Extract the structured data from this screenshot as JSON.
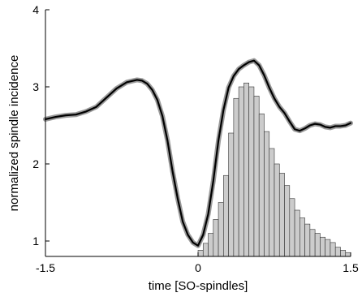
{
  "chart_data": {
    "type": "line",
    "title": "",
    "xlabel": "time [SO-spindles]",
    "ylabel": "normalized spindle incidence",
    "xlim": [
      -1.5,
      1.5
    ],
    "ylim": [
      0.8,
      4
    ],
    "xticks": [
      -1.5,
      0,
      1.5
    ],
    "xtick_labels": [
      "-1.5",
      "0",
      "1.5"
    ],
    "yticks": [
      1,
      2,
      3,
      4
    ],
    "ytick_labels": [
      "1",
      "2",
      "3",
      "4"
    ],
    "grid": false,
    "curve": {
      "x": [
        -1.5,
        -1.4,
        -1.3,
        -1.2,
        -1.1,
        -1.0,
        -0.9,
        -0.8,
        -0.7,
        -0.6,
        -0.55,
        -0.5,
        -0.45,
        -0.4,
        -0.35,
        -0.3,
        -0.25,
        -0.2,
        -0.15,
        -0.1,
        -0.05,
        0.0,
        0.05,
        0.1,
        0.15,
        0.2,
        0.25,
        0.3,
        0.35,
        0.4,
        0.45,
        0.5,
        0.55,
        0.6,
        0.65,
        0.7,
        0.75,
        0.8,
        0.85,
        0.9,
        0.95,
        1.0,
        1.05,
        1.1,
        1.15,
        1.2,
        1.25,
        1.3,
        1.35,
        1.4,
        1.45,
        1.5
      ],
      "y": [
        2.58,
        2.61,
        2.63,
        2.64,
        2.68,
        2.74,
        2.86,
        2.98,
        3.06,
        3.09,
        3.08,
        3.04,
        2.96,
        2.83,
        2.62,
        2.3,
        1.9,
        1.55,
        1.25,
        1.08,
        0.98,
        0.94,
        1.08,
        1.35,
        1.78,
        2.3,
        2.7,
        2.99,
        3.14,
        3.23,
        3.28,
        3.32,
        3.34,
        3.28,
        3.15,
        2.99,
        2.85,
        2.74,
        2.66,
        2.55,
        2.45,
        2.43,
        2.46,
        2.5,
        2.52,
        2.51,
        2.48,
        2.47,
        2.49,
        2.49,
        2.5,
        2.53
      ],
      "color": "#000000",
      "band_color": "#9a9a9a"
    },
    "histogram": {
      "bin_width": 0.05,
      "bin_starts": [
        0.0,
        0.05,
        0.1,
        0.15,
        0.2,
        0.25,
        0.3,
        0.35,
        0.4,
        0.45,
        0.5,
        0.55,
        0.6,
        0.65,
        0.7,
        0.75,
        0.8,
        0.85,
        0.9,
        0.95,
        1.0,
        1.05,
        1.1,
        1.15,
        1.2,
        1.25,
        1.3,
        1.35,
        1.4,
        1.45
      ],
      "values": [
        0.88,
        0.97,
        1.1,
        1.28,
        1.5,
        1.85,
        2.4,
        2.85,
        3.0,
        3.05,
        3.0,
        2.88,
        2.65,
        2.42,
        2.2,
        2.0,
        1.88,
        1.72,
        1.55,
        1.4,
        1.3,
        1.22,
        1.15,
        1.1,
        1.05,
        1.02,
        0.98,
        0.92,
        0.88,
        0.85
      ],
      "fill": "#cccccc",
      "stroke": "#333333"
    }
  }
}
